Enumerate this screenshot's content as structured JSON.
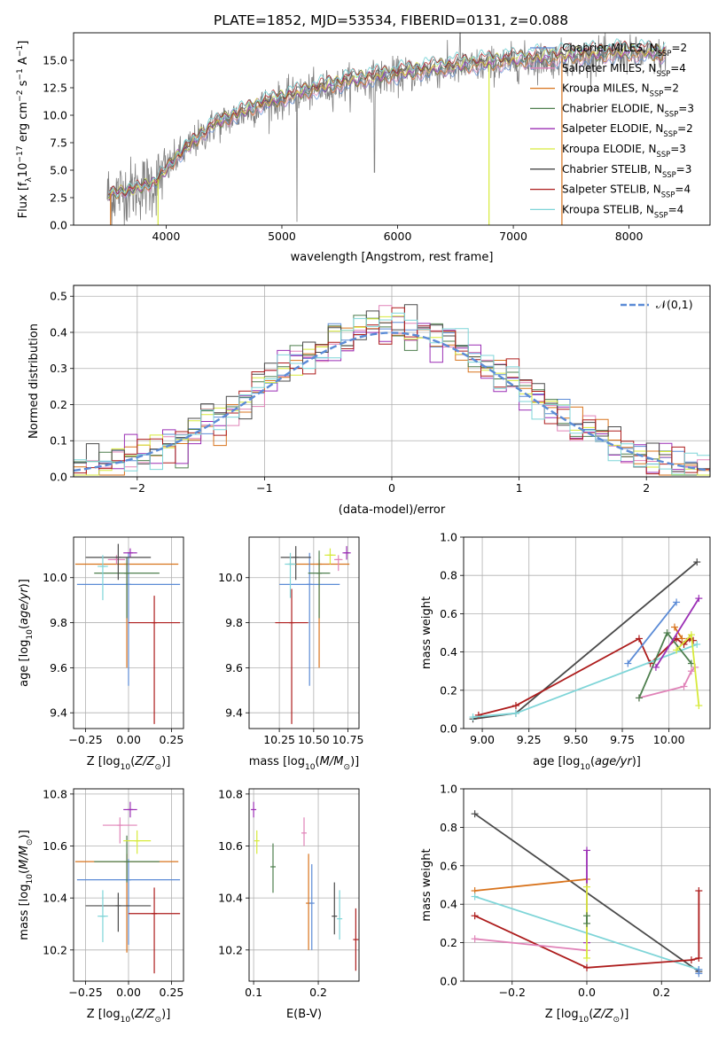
{
  "figure": {
    "title": "PLATE=1852, MJD=53534, FIBERID=0131, z=0.088"
  },
  "colors": {
    "chabrier_miles": "#5b8bd6",
    "salpeter_miles": "#e083b8",
    "kroupa_miles": "#d8731c",
    "chabrier_elodie": "#4e7f4e",
    "salpeter_elodie": "#9b2fb5",
    "kroupa_elodie": "#d7ea3a",
    "chabrier_stelib": "#4a4a4a",
    "salpeter_stelib": "#ad1c1c",
    "kroupa_stelib": "#7fd5d8",
    "data": "#7f7f7f",
    "normal": "#5b8bd6"
  },
  "chart_data": [
    {
      "id": "spectrum",
      "type": "line",
      "title": "PLATE=1852, MJD=53534, FIBERID=0131, z=0.088",
      "xlabel": "wavelength [Angstrom, rest frame]",
      "ylabel": "Flux [f_λ 10^-17 erg cm^-2 s^-1 A^-1]",
      "xlim": [
        3200,
        8700
      ],
      "ylim": [
        0,
        17.5
      ],
      "xticks": [
        4000,
        5000,
        6000,
        7000,
        8000
      ],
      "yticks": [
        "0.0",
        "2.5",
        "5.0",
        "7.5",
        "10.0",
        "12.5",
        "15.0"
      ],
      "legend_position": "right",
      "legend": [
        {
          "label": "Chabrier MILES, N",
          "sub": "SSP",
          "tail": "=2",
          "key": "chabrier_miles"
        },
        {
          "label": "Salpeter MILES, N",
          "sub": "SSP",
          "tail": "=4",
          "key": "salpeter_miles"
        },
        {
          "label": "Kroupa MILES, N",
          "sub": "SSP",
          "tail": "=2",
          "key": "kroupa_miles"
        },
        {
          "label": "Chabrier ELODIE, N",
          "sub": "SSP",
          "tail": "=3",
          "key": "chabrier_elodie"
        },
        {
          "label": "Salpeter ELODIE, N",
          "sub": "SSP",
          "tail": "=2",
          "key": "salpeter_elodie"
        },
        {
          "label": "Kroupa ELODIE, N",
          "sub": "SSP",
          "tail": "=3",
          "key": "kroupa_elodie"
        },
        {
          "label": "Chabrier STELIB, N",
          "sub": "SSP",
          "tail": "=3",
          "key": "chabrier_stelib"
        },
        {
          "label": "Salpeter STELIB, N",
          "sub": "SSP",
          "tail": "=4",
          "key": "salpeter_stelib"
        },
        {
          "label": "Kroupa STELIB, N",
          "sub": "SSP",
          "tail": "=4",
          "key": "kroupa_stelib"
        }
      ],
      "continuum": {
        "x": [
          3500,
          3700,
          3900,
          4100,
          4400,
          4800,
          5200,
          5600,
          6000,
          6400,
          6800,
          7200,
          7600,
          8000,
          8300
        ],
        "y": [
          2.8,
          3.2,
          3.8,
          6.2,
          9.0,
          10.8,
          12.0,
          13.0,
          13.6,
          14.2,
          14.6,
          15.0,
          15.3,
          15.5,
          15.4
        ]
      }
    },
    {
      "id": "residuals",
      "type": "step-histogram",
      "xlabel": "(data-model)/error",
      "ylabel": "Normed distribution",
      "xlim": [
        -2.5,
        2.5
      ],
      "ylim": [
        0,
        0.53
      ],
      "xticks": [
        "−2",
        "−1",
        "0",
        "1",
        "2"
      ],
      "yticks": [
        "0.0",
        "0.1",
        "0.2",
        "0.3",
        "0.4",
        "0.5"
      ],
      "legend": "𝒩(0,1)",
      "legend_position": "top-right",
      "bin_width": 0.1
    },
    {
      "id": "age-vs-Z",
      "type": "errorbar",
      "xlabel": "Z [log₁₀(Z/Z☉)]",
      "ylabel": "age  [log₁₀(age/yr)]",
      "xlim": [
        -0.32,
        0.32
      ],
      "ylim": [
        9.33,
        10.18
      ],
      "xticks": [
        "−0.25",
        "0.00",
        "0.25"
      ],
      "yticks": [
        "9.4",
        "9.6",
        "9.8",
        "10.0"
      ],
      "points": [
        {
          "key": "kroupa_miles",
          "x": -0.01,
          "y": 10.06,
          "xerr": 0.3,
          "yerr": [
            0.46,
            0.02
          ]
        },
        {
          "key": "chabrier_miles",
          "x": 0.0,
          "y": 9.97,
          "xerr": 0.3,
          "yerr": [
            0.45,
            0.14
          ]
        },
        {
          "key": "salpeter_miles",
          "x": -0.07,
          "y": 10.08,
          "xerr": 0.05,
          "yerr": [
            0.02,
            0.02
          ]
        },
        {
          "key": "chabrier_elodie",
          "x": -0.01,
          "y": 10.02,
          "xerr": 0.19,
          "yerr": [
            0.2,
            0.07
          ]
        },
        {
          "key": "salpeter_elodie",
          "x": 0.01,
          "y": 10.11,
          "xerr": 0.04,
          "yerr": [
            0.02,
            0.02
          ]
        },
        {
          "key": "chabrier_stelib",
          "x": -0.06,
          "y": 10.09,
          "xerr": 0.19,
          "yerr": [
            0.1,
            0.06
          ]
        },
        {
          "key": "salpeter_stelib",
          "x": 0.15,
          "y": 9.8,
          "xerr": 0.15,
          "yerr": [
            0.45,
            0.12
          ]
        },
        {
          "key": "kroupa_stelib",
          "x": -0.15,
          "y": 10.05,
          "xerr": 0.03,
          "yerr": [
            0.15,
            0.05
          ]
        }
      ]
    },
    {
      "id": "age-vs-mass",
      "type": "errorbar",
      "xlabel": "mass [log₁₀(M/M☉)]",
      "xlim": [
        10.03,
        10.83
      ],
      "ylim": [
        9.33,
        10.18
      ],
      "xticks": [
        "10.25",
        "10.50",
        "10.75"
      ],
      "yticks": [
        "9.4",
        "9.6",
        "9.8",
        "10.0"
      ],
      "points": [
        {
          "key": "kroupa_miles",
          "x": 10.54,
          "y": 10.06,
          "xerr": 0.22,
          "yerr": [
            0.46,
            0.02
          ]
        },
        {
          "key": "chabrier_miles",
          "x": 10.47,
          "y": 9.97,
          "xerr": 0.22,
          "yerr": [
            0.45,
            0.14
          ]
        },
        {
          "key": "salpeter_miles",
          "x": 10.68,
          "y": 10.08,
          "xerr": 0.03,
          "yerr": [
            0.05,
            0.02
          ]
        },
        {
          "key": "chabrier_elodie",
          "x": 10.54,
          "y": 10.02,
          "xerr": 0.08,
          "yerr": [
            0.2,
            0.1
          ]
        },
        {
          "key": "salpeter_elodie",
          "x": 10.74,
          "y": 10.11,
          "xerr": 0.03,
          "yerr": [
            0.03,
            0.03
          ]
        },
        {
          "key": "kroupa_elodie",
          "x": 10.62,
          "y": 10.1,
          "xerr": 0.04,
          "yerr": [
            0.04,
            0.03
          ]
        },
        {
          "key": "chabrier_stelib",
          "x": 10.37,
          "y": 10.09,
          "xerr": 0.11,
          "yerr": [
            0.1,
            0.05
          ]
        },
        {
          "key": "salpeter_stelib",
          "x": 10.34,
          "y": 9.8,
          "xerr": 0.12,
          "yerr": [
            0.45,
            0.15
          ]
        },
        {
          "key": "kroupa_stelib",
          "x": 10.33,
          "y": 10.06,
          "xerr": 0.04,
          "yerr": [
            0.15,
            0.05
          ]
        }
      ]
    },
    {
      "id": "massweight-vs-age",
      "type": "line",
      "xlabel": "age  [log₁₀(age/yr)]",
      "ylabel": "mass weight",
      "xlim": [
        8.9,
        10.22
      ],
      "ylim": [
        0,
        1.0
      ],
      "xticks": [
        "9.00",
        "9.25",
        "9.50",
        "9.75",
        "10.00"
      ],
      "yticks": [
        "0.0",
        "0.2",
        "0.4",
        "0.6",
        "0.8",
        "1.0"
      ],
      "series": [
        {
          "key": "chabrier_stelib",
          "x": [
            8.95,
            9.18,
            10.15
          ],
          "y": [
            0.05,
            0.08,
            0.87
          ]
        },
        {
          "key": "salpeter_stelib",
          "x": [
            8.98,
            9.18,
            9.84,
            9.9,
            10.04,
            10.08,
            10.11,
            10.13
          ],
          "y": [
            0.07,
            0.12,
            0.47,
            0.34,
            0.47,
            0.44,
            0.47,
            0.46
          ]
        },
        {
          "key": "kroupa_stelib",
          "x": [
            8.95,
            9.18,
            10.15
          ],
          "y": [
            0.06,
            0.08,
            0.44
          ]
        },
        {
          "key": "chabrier_miles",
          "x": [
            9.78,
            10.04
          ],
          "y": [
            0.34,
            0.66
          ]
        },
        {
          "key": "salpeter_miles",
          "x": [
            9.84,
            10.08,
            10.12,
            10.14
          ],
          "y": [
            0.16,
            0.22,
            0.3,
            0.32
          ]
        },
        {
          "key": "kroupa_miles",
          "x": [
            10.03,
            10.07
          ],
          "y": [
            0.53,
            0.47
          ]
        },
        {
          "key": "chabrier_elodie",
          "x": [
            9.84,
            9.99,
            10.12
          ],
          "y": [
            0.16,
            0.5,
            0.34
          ]
        },
        {
          "key": "salpeter_elodie",
          "x": [
            9.93,
            10.16
          ],
          "y": [
            0.32,
            0.68
          ]
        },
        {
          "key": "kroupa_elodie",
          "x": [
            10.04,
            10.12,
            10.16
          ],
          "y": [
            0.41,
            0.49,
            0.12
          ]
        }
      ]
    },
    {
      "id": "mass-vs-Z",
      "type": "errorbar",
      "xlabel": "Z [log₁₀(Z/Z☉)]",
      "ylabel": "mass [log₁₀(M/M☉)]",
      "xlim": [
        -0.32,
        0.32
      ],
      "ylim": [
        10.08,
        10.82
      ],
      "xticks": [
        "−0.25",
        "0.00",
        "0.25"
      ],
      "yticks": [
        "10.2",
        "10.4",
        "10.6",
        "10.8"
      ],
      "points": [
        {
          "key": "kroupa_miles",
          "x": -0.01,
          "y": 10.54,
          "xerr": 0.3,
          "yerr": [
            0.35,
            0.03
          ]
        },
        {
          "key": "chabrier_miles",
          "x": 0.0,
          "y": 10.47,
          "xerr": 0.3,
          "yerr": [
            0.25,
            0.08
          ]
        },
        {
          "key": "salpeter_miles",
          "x": -0.05,
          "y": 10.68,
          "xerr": 0.1,
          "yerr": [
            0.07,
            0.03
          ]
        },
        {
          "key": "chabrier_elodie",
          "x": -0.01,
          "y": 10.54,
          "xerr": 0.19,
          "yerr": [
            0.08,
            0.1
          ]
        },
        {
          "key": "salpeter_elodie",
          "x": 0.01,
          "y": 10.74,
          "xerr": 0.04,
          "yerr": [
            0.03,
            0.03
          ]
        },
        {
          "key": "kroupa_elodie",
          "x": 0.05,
          "y": 10.62,
          "xerr": 0.08,
          "yerr": [
            0.05,
            0.04
          ]
        },
        {
          "key": "chabrier_stelib",
          "x": -0.06,
          "y": 10.37,
          "xerr": 0.19,
          "yerr": [
            0.1,
            0.05
          ]
        },
        {
          "key": "salpeter_stelib",
          "x": 0.15,
          "y": 10.34,
          "xerr": 0.15,
          "yerr": [
            0.23,
            0.1
          ]
        },
        {
          "key": "kroupa_stelib",
          "x": -0.15,
          "y": 10.33,
          "xerr": 0.03,
          "yerr": [
            0.1,
            0.1
          ]
        }
      ]
    },
    {
      "id": "mass-vs-EBV",
      "type": "errorbar",
      "xlabel": "E(B-V)",
      "xlim": [
        0.093,
        0.263
      ],
      "ylim": [
        10.08,
        10.82
      ],
      "xticks": [
        "0.1",
        "0.2"
      ],
      "yticks": [
        "10.2",
        "10.4",
        "10.6",
        "10.8"
      ],
      "points": [
        {
          "key": "salpeter_elodie",
          "x": 0.1,
          "y": 10.74,
          "yerr": [
            0.03,
            0.03
          ]
        },
        {
          "key": "kroupa_elodie",
          "x": 0.105,
          "y": 10.62,
          "yerr": [
            0.05,
            0.04
          ]
        },
        {
          "key": "chabrier_elodie",
          "x": 0.13,
          "y": 10.52,
          "yerr": [
            0.1,
            0.09
          ]
        },
        {
          "key": "salpeter_miles",
          "x": 0.178,
          "y": 10.65,
          "yerr": [
            0.05,
            0.06
          ]
        },
        {
          "key": "kroupa_miles",
          "x": 0.185,
          "y": 10.38,
          "yerr": [
            0.18,
            0.19
          ]
        },
        {
          "key": "chabrier_miles",
          "x": 0.19,
          "y": 10.38,
          "yerr": [
            0.18,
            0.15
          ]
        },
        {
          "key": "chabrier_stelib",
          "x": 0.225,
          "y": 10.33,
          "yerr": [
            0.07,
            0.13
          ]
        },
        {
          "key": "kroupa_stelib",
          "x": 0.233,
          "y": 10.32,
          "yerr": [
            0.08,
            0.11
          ]
        },
        {
          "key": "salpeter_stelib",
          "x": 0.258,
          "y": 10.24,
          "yerr": [
            0.12,
            0.12
          ]
        }
      ]
    },
    {
      "id": "massweight-vs-Z",
      "type": "line",
      "xlabel": "Z [log₁₀(Z/Z☉)]",
      "ylabel": "mass weight",
      "xlim": [
        -0.33,
        0.33
      ],
      "ylim": [
        0,
        1.0
      ],
      "xticks": [
        "−0.2",
        "0.0",
        "0.2"
      ],
      "yticks": [
        "0.0",
        "0.2",
        "0.4",
        "0.6",
        "0.8",
        "1.0"
      ],
      "series": [
        {
          "key": "chabrier_stelib",
          "x": [
            -0.3,
            0.3
          ],
          "y": [
            0.87,
            0.05
          ]
        },
        {
          "key": "kroupa_miles",
          "x": [
            -0.3,
            0.0
          ],
          "y": [
            0.47,
            0.53
          ]
        },
        {
          "key": "kroupa_stelib",
          "x": [
            -0.3,
            0.3
          ],
          "y": [
            0.44,
            0.06
          ]
        },
        {
          "key": "salpeter_stelib",
          "x": [
            -0.3,
            0.0,
            0.28,
            0.3,
            0.3
          ],
          "y": [
            0.34,
            0.07,
            0.11,
            0.12,
            0.47
          ]
        },
        {
          "key": "salpeter_miles",
          "x": [
            -0.3,
            0.0
          ],
          "y": [
            0.22,
            0.16
          ]
        },
        {
          "key": "salpeter_elodie",
          "x": [
            0.0,
            0.0
          ],
          "y": [
            0.68,
            0.2
          ]
        },
        {
          "key": "kroupa_elodie",
          "x": [
            0.0,
            0.0
          ],
          "y": [
            0.49,
            0.12
          ]
        },
        {
          "key": "chabrier_elodie",
          "x": [
            0.0,
            0.0
          ],
          "y": [
            0.34,
            0.3
          ]
        },
        {
          "key": "chabrier_miles",
          "x": [
            0.3,
            0.3
          ],
          "y": [
            0.04,
            0.06
          ]
        }
      ]
    }
  ]
}
